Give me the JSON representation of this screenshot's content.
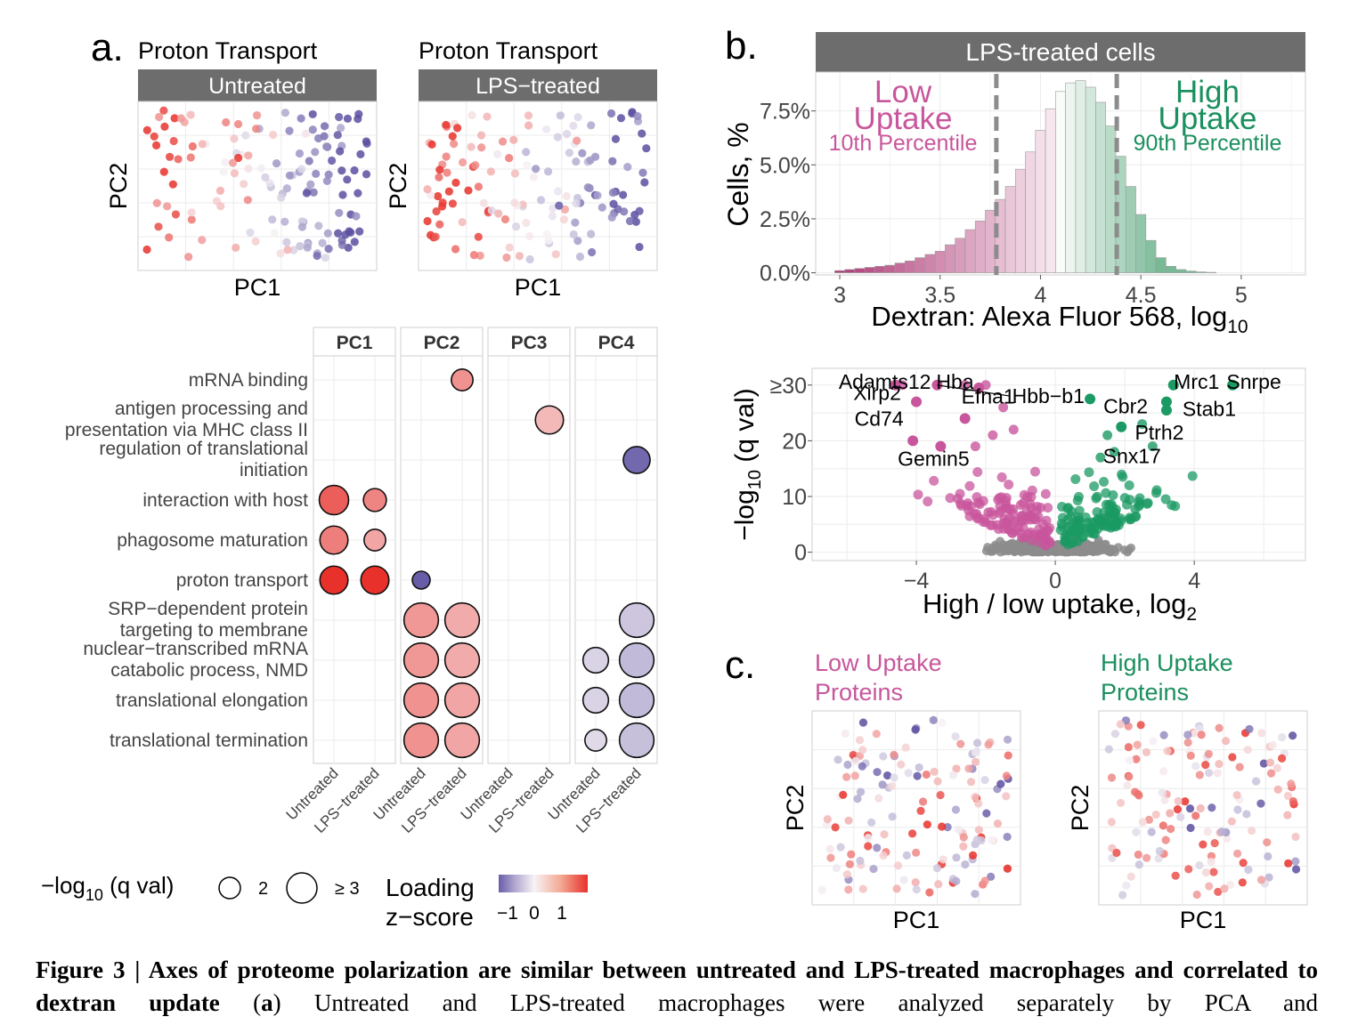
{
  "panel_a": {
    "letter": "a.",
    "plot1": {
      "title": "Proton Transport",
      "strip": "Untreated",
      "xlabel": "PC1",
      "ylabel": "PC2"
    },
    "plot2": {
      "title": "Proton Transport",
      "strip": "LPS−treated",
      "xlabel": "PC1",
      "ylabel": "PC2"
    }
  },
  "panel_b": {
    "letter": "b.",
    "strip": "LPS-treated cells",
    "low_label": [
      "Low",
      "Uptake"
    ],
    "low_sub": "10th Percentile",
    "high_label": [
      "High",
      "Uptake"
    ],
    "high_sub": "90th Percentile",
    "ylabel": "Cells, %",
    "xlabel": "Dextran: Alexa Fluor 568, log",
    "xlabel_sub": "10"
  },
  "panel_c": {
    "letter": "c.",
    "plot1": {
      "title": [
        "Low Uptake",
        "Proteins"
      ],
      "xlabel": "PC1",
      "ylabel": "PC2"
    },
    "plot2": {
      "title": [
        "High Uptake",
        "Proteins"
      ],
      "xlabel": "PC1",
      "ylabel": "PC2"
    }
  },
  "legend": {
    "size_title": "−log",
    "size_sub": "10",
    "size_title_end": " (q val)",
    "size_2": "2",
    "size_3": "≥ 3",
    "color_title": [
      "Loading",
      "z−score"
    ],
    "color_ticks": [
      "−1",
      "0",
      "1"
    ]
  },
  "caption": {
    "bold": "Figure 3 | Axes of proteome polarization are similar between untreated and LPS-treated macrophages and correlated to dextran update",
    "rest_open": " (",
    "rest_letter": "a",
    "rest": ") Untreated and LPS-treated macrophages were analyzed separately by PCA and"
  },
  "colors": {
    "strip_bg": "#6d6d6d",
    "low_uptake": "#c8569c",
    "high_uptake": "#1b8f5e",
    "high_scale": "#e8312a",
    "low_scale": "#5a4fa0",
    "gray_points": "#8c8c8c"
  },
  "chart_data": [
    {
      "type": "heatmap",
      "id": "go_enrichment_dotplot",
      "facets": [
        "PC1",
        "PC2",
        "PC3",
        "PC4"
      ],
      "conditions": [
        "Untreated",
        "LPS−treated"
      ],
      "terms": [
        "mRNA binding",
        "antigen processing and presentation via MHC class II",
        "regulation of translational initiation",
        "interaction with host",
        "phagosome maturation",
        "proton transport",
        "SRP−dependent protein targeting to membrane",
        "nuclear−transcribed mRNA catabolic process, NMD",
        "translational elongation",
        "translational termination"
      ],
      "term_lines": [
        [
          "mRNA binding"
        ],
        [
          "antigen processing and",
          "presentation via MHC class II"
        ],
        [
          "regulation of translational",
          "initiation"
        ],
        [
          "interaction with host"
        ],
        [
          "phagosome maturation"
        ],
        [
          "proton transport"
        ],
        [
          "SRP−dependent protein",
          "targeting to membrane"
        ],
        [
          "nuclear−transcribed mRNA",
          "catabolic process, NMD"
        ],
        [
          "translational elongation"
        ],
        [
          "translational termination"
        ]
      ],
      "points": [
        {
          "term": 0,
          "facet": 1,
          "cond": 1,
          "neglog10q": 2.0,
          "z": 0.75
        },
        {
          "term": 1,
          "facet": 2,
          "cond": 1,
          "neglog10q": 2.5,
          "z": 0.45
        },
        {
          "term": 2,
          "facet": 3,
          "cond": 1,
          "neglog10q": 2.4,
          "z": -1.1
        },
        {
          "term": 3,
          "facet": 0,
          "cond": 0,
          "neglog10q": 2.6,
          "z": 1.15
        },
        {
          "term": 3,
          "facet": 0,
          "cond": 1,
          "neglog10q": 2.1,
          "z": 0.85
        },
        {
          "term": 4,
          "facet": 0,
          "cond": 0,
          "neglog10q": 2.5,
          "z": 0.9
        },
        {
          "term": 4,
          "facet": 0,
          "cond": 1,
          "neglog10q": 2.0,
          "z": 0.6
        },
        {
          "term": 5,
          "facet": 0,
          "cond": 0,
          "neglog10q": 2.5,
          "z": 1.5
        },
        {
          "term": 5,
          "facet": 0,
          "cond": 1,
          "neglog10q": 2.5,
          "z": 1.5
        },
        {
          "term": 5,
          "facet": 1,
          "cond": 0,
          "neglog10q": 1.7,
          "z": -1.2
        },
        {
          "term": 6,
          "facet": 1,
          "cond": 0,
          "neglog10q": 3.0,
          "z": 0.7
        },
        {
          "term": 6,
          "facet": 1,
          "cond": 1,
          "neglog10q": 3.0,
          "z": 0.55
        },
        {
          "term": 6,
          "facet": 3,
          "cond": 1,
          "neglog10q": 3.0,
          "z": -0.35
        },
        {
          "term": 7,
          "facet": 1,
          "cond": 0,
          "neglog10q": 3.0,
          "z": 0.7
        },
        {
          "term": 7,
          "facet": 1,
          "cond": 1,
          "neglog10q": 3.0,
          "z": 0.55
        },
        {
          "term": 7,
          "facet": 3,
          "cond": 0,
          "neglog10q": 2.3,
          "z": -0.25
        },
        {
          "term": 7,
          "facet": 3,
          "cond": 1,
          "neglog10q": 3.0,
          "z": -0.45
        },
        {
          "term": 8,
          "facet": 1,
          "cond": 0,
          "neglog10q": 3.0,
          "z": 0.75
        },
        {
          "term": 8,
          "facet": 1,
          "cond": 1,
          "neglog10q": 3.0,
          "z": 0.6
        },
        {
          "term": 8,
          "facet": 3,
          "cond": 0,
          "neglog10q": 2.3,
          "z": -0.25
        },
        {
          "term": 8,
          "facet": 3,
          "cond": 1,
          "neglog10q": 3.0,
          "z": -0.45
        },
        {
          "term": 9,
          "facet": 1,
          "cond": 0,
          "neglog10q": 3.0,
          "z": 0.75
        },
        {
          "term": 9,
          "facet": 1,
          "cond": 1,
          "neglog10q": 3.0,
          "z": 0.6
        },
        {
          "term": 9,
          "facet": 3,
          "cond": 0,
          "neglog10q": 2.0,
          "z": -0.2
        },
        {
          "term": 9,
          "facet": 3,
          "cond": 1,
          "neglog10q": 3.0,
          "z": -0.4
        }
      ]
    },
    {
      "type": "bar",
      "id": "dextran_histogram",
      "x": [
        3.0,
        3.05,
        3.1,
        3.15,
        3.2,
        3.25,
        3.3,
        3.35,
        3.4,
        3.45,
        3.5,
        3.55,
        3.6,
        3.65,
        3.7,
        3.75,
        3.8,
        3.85,
        3.9,
        3.95,
        4.0,
        4.05,
        4.1,
        4.15,
        4.2,
        4.25,
        4.3,
        4.35,
        4.4,
        4.45,
        4.5,
        4.55,
        4.6,
        4.65,
        4.7,
        4.75,
        4.8,
        4.85
      ],
      "values": [
        0.1,
        0.15,
        0.2,
        0.25,
        0.3,
        0.35,
        0.45,
        0.55,
        0.7,
        0.85,
        1.0,
        1.3,
        1.6,
        2.0,
        2.4,
        2.9,
        3.4,
        4.0,
        4.8,
        5.6,
        6.6,
        7.6,
        8.4,
        8.8,
        8.9,
        8.6,
        7.9,
        6.8,
        5.4,
        4.0,
        2.7,
        1.5,
        0.7,
        0.3,
        0.15,
        0.08,
        0.04,
        0.02
      ],
      "xticks": [
        "3",
        "3.5",
        "4",
        "4.5",
        "5"
      ],
      "yticks": [
        "0.0%",
        "2.5%",
        "5.0%",
        "7.5%"
      ],
      "xlim": [
        2.88,
        5.32
      ],
      "ylim": [
        -0.1,
        9.3
      ],
      "thresholds": [
        3.78,
        4.38
      ]
    },
    {
      "type": "scatter",
      "id": "volcano",
      "xticks": [
        "−4",
        "0",
        "4"
      ],
      "yticks": [
        "0",
        "10",
        "20",
        "≥30"
      ],
      "xlabel": "High / low uptake, log",
      "xlabel_sub": "2",
      "ylabel_main": "−log",
      "ylabel_sub": "10",
      "ylabel_end": " (q val)",
      "xlim": [
        -7,
        7.2
      ],
      "ylim": [
        -1.5,
        33
      ],
      "labeled": [
        {
          "label": "Adamts12",
          "x": -4.6,
          "y": 30,
          "side": "low"
        },
        {
          "label": "Hba",
          "x": -3.4,
          "y": 30,
          "side": "low"
        },
        {
          "label": "Hbb−b1",
          "x": -2.2,
          "y": 29.5,
          "side": "low"
        },
        {
          "label": "Xirp2",
          "x": -4.0,
          "y": 27,
          "side": "low"
        },
        {
          "label": "Efna1",
          "x": -2.6,
          "y": 24,
          "side": "low"
        },
        {
          "label": "Cd74",
          "x": -4.1,
          "y": 20,
          "side": "low"
        },
        {
          "label": "Gemin5",
          "x": -3.3,
          "y": 19,
          "side": "low"
        },
        {
          "label": "Mrc1",
          "x": 3.4,
          "y": 30,
          "side": "high"
        },
        {
          "label": "Snrpe",
          "x": 5.1,
          "y": 30,
          "side": "high"
        },
        {
          "label": "Cbr2",
          "x": 1.0,
          "y": 27.5,
          "side": "high"
        },
        {
          "label": "Stab1",
          "x": 3.2,
          "y": 27,
          "side": "high"
        },
        {
          "label": "Ptrh2",
          "x": 3.2,
          "y": 25.5,
          "side": "high"
        },
        {
          "label": "Snx17",
          "x": 1.9,
          "y": 22.5,
          "side": "high"
        }
      ]
    },
    {
      "type": "scatter",
      "id": "pca_scatterplots",
      "note": "PCA score plots colored by z-score; panels a (Untreated, LPS−treated) and c (Low / High Uptake Proteins)"
    }
  ]
}
